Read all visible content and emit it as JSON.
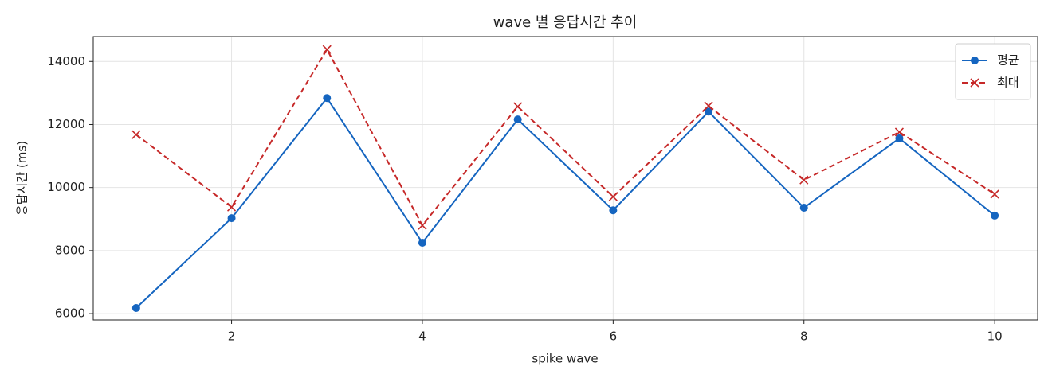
{
  "chart_data": {
    "type": "line",
    "title": "wave 별 응답시간 추이",
    "x_label": "spike wave",
    "y_label": "응답시간 (ms)",
    "x": [
      1,
      2,
      3,
      4,
      5,
      6,
      7,
      8,
      9,
      10
    ],
    "series": [
      {
        "name": "평균",
        "color": "#1565c0",
        "marker": "o",
        "linestyle": "solid",
        "values": [
          6180,
          9030,
          12840,
          8250,
          12160,
          9280,
          12410,
          9360,
          11560,
          9110
        ]
      },
      {
        "name": "최대",
        "color": "#c62828",
        "marker": "x",
        "linestyle": "dashed",
        "values": [
          11680,
          9380,
          14380,
          8800,
          12570,
          9710,
          12590,
          10240,
          11760,
          9790
        ]
      }
    ],
    "xlim": [
      0.55,
      10.45
    ],
    "ylim": [
      5800,
      14790
    ],
    "xticks": [
      2,
      4,
      6,
      8,
      10
    ],
    "yticks": [
      6000,
      8000,
      10000,
      12000,
      14000
    ],
    "grid": true,
    "legend": "upper right"
  }
}
